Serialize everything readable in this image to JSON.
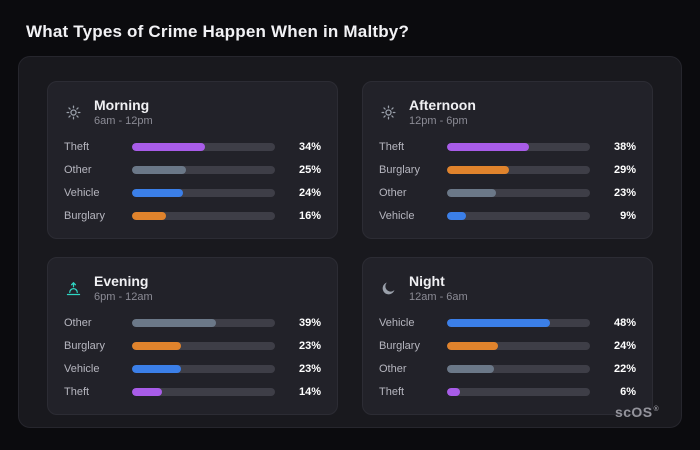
{
  "title": "What Types of Crime Happen When in Maltby?",
  "brand": {
    "name": "scOS",
    "mark": "®"
  },
  "layout": {
    "bar_scale": 1.5
  },
  "colors": {
    "theft": "#a85ce8",
    "other": "#6b7888",
    "vehicle": "#3b7fe8",
    "burglary": "#e0832c",
    "bar_track": "#3e3e47",
    "evening_icon": "#2fd6c3",
    "panel_bg": "#19191e",
    "card_bg": "#222229",
    "page_bg": "#0b0b0e"
  },
  "cards": [
    {
      "title": "Morning",
      "subtitle": "6am - 12pm",
      "icon": "sun-icon",
      "rows": [
        {
          "label": "Theft",
          "value": 34,
          "pct": "34%",
          "color": "#a85ce8"
        },
        {
          "label": "Other",
          "value": 25,
          "pct": "25%",
          "color": "#6b7888"
        },
        {
          "label": "Vehicle",
          "value": 24,
          "pct": "24%",
          "color": "#3b7fe8"
        },
        {
          "label": "Burglary",
          "value": 16,
          "pct": "16%",
          "color": "#e0832c"
        }
      ]
    },
    {
      "title": "Afternoon",
      "subtitle": "12pm - 6pm",
      "icon": "sun-icon",
      "rows": [
        {
          "label": "Theft",
          "value": 38,
          "pct": "38%",
          "color": "#a85ce8"
        },
        {
          "label": "Burglary",
          "value": 29,
          "pct": "29%",
          "color": "#e0832c"
        },
        {
          "label": "Other",
          "value": 23,
          "pct": "23%",
          "color": "#6b7888"
        },
        {
          "label": "Vehicle",
          "value": 9,
          "pct": "9%",
          "color": "#3b7fe8"
        }
      ]
    },
    {
      "title": "Evening",
      "subtitle": "6pm - 12am",
      "icon": "sunset-icon",
      "rows": [
        {
          "label": "Other",
          "value": 39,
          "pct": "39%",
          "color": "#6b7888"
        },
        {
          "label": "Burglary",
          "value": 23,
          "pct": "23%",
          "color": "#e0832c"
        },
        {
          "label": "Vehicle",
          "value": 23,
          "pct": "23%",
          "color": "#3b7fe8"
        },
        {
          "label": "Theft",
          "value": 14,
          "pct": "14%",
          "color": "#a85ce8"
        }
      ]
    },
    {
      "title": "Night",
      "subtitle": "12am - 6am",
      "icon": "moon-icon",
      "rows": [
        {
          "label": "Vehicle",
          "value": 48,
          "pct": "48%",
          "color": "#3b7fe8"
        },
        {
          "label": "Burglary",
          "value": 24,
          "pct": "24%",
          "color": "#e0832c"
        },
        {
          "label": "Other",
          "value": 22,
          "pct": "22%",
          "color": "#6b7888"
        },
        {
          "label": "Theft",
          "value": 6,
          "pct": "6%",
          "color": "#a85ce8"
        }
      ]
    }
  ],
  "chart_data": [
    {
      "type": "bar",
      "orientation": "horizontal",
      "title": "Morning",
      "subtitle": "6am - 12pm",
      "categories": [
        "Theft",
        "Other",
        "Vehicle",
        "Burglary"
      ],
      "values": [
        34,
        25,
        24,
        16
      ],
      "unit": "%",
      "xlim": [
        0,
        50
      ],
      "grid": false,
      "legend": false
    },
    {
      "type": "bar",
      "orientation": "horizontal",
      "title": "Afternoon",
      "subtitle": "12pm - 6pm",
      "categories": [
        "Theft",
        "Burglary",
        "Other",
        "Vehicle"
      ],
      "values": [
        38,
        29,
        23,
        9
      ],
      "unit": "%",
      "xlim": [
        0,
        50
      ],
      "grid": false,
      "legend": false
    },
    {
      "type": "bar",
      "orientation": "horizontal",
      "title": "Evening",
      "subtitle": "6pm - 12am",
      "categories": [
        "Other",
        "Burglary",
        "Vehicle",
        "Theft"
      ],
      "values": [
        39,
        23,
        23,
        14
      ],
      "unit": "%",
      "xlim": [
        0,
        50
      ],
      "grid": false,
      "legend": false
    },
    {
      "type": "bar",
      "orientation": "horizontal",
      "title": "Night",
      "subtitle": "12am - 6am",
      "categories": [
        "Vehicle",
        "Burglary",
        "Other",
        "Theft"
      ],
      "values": [
        48,
        24,
        22,
        6
      ],
      "unit": "%",
      "xlim": [
        0,
        50
      ],
      "grid": false,
      "legend": false
    }
  ]
}
